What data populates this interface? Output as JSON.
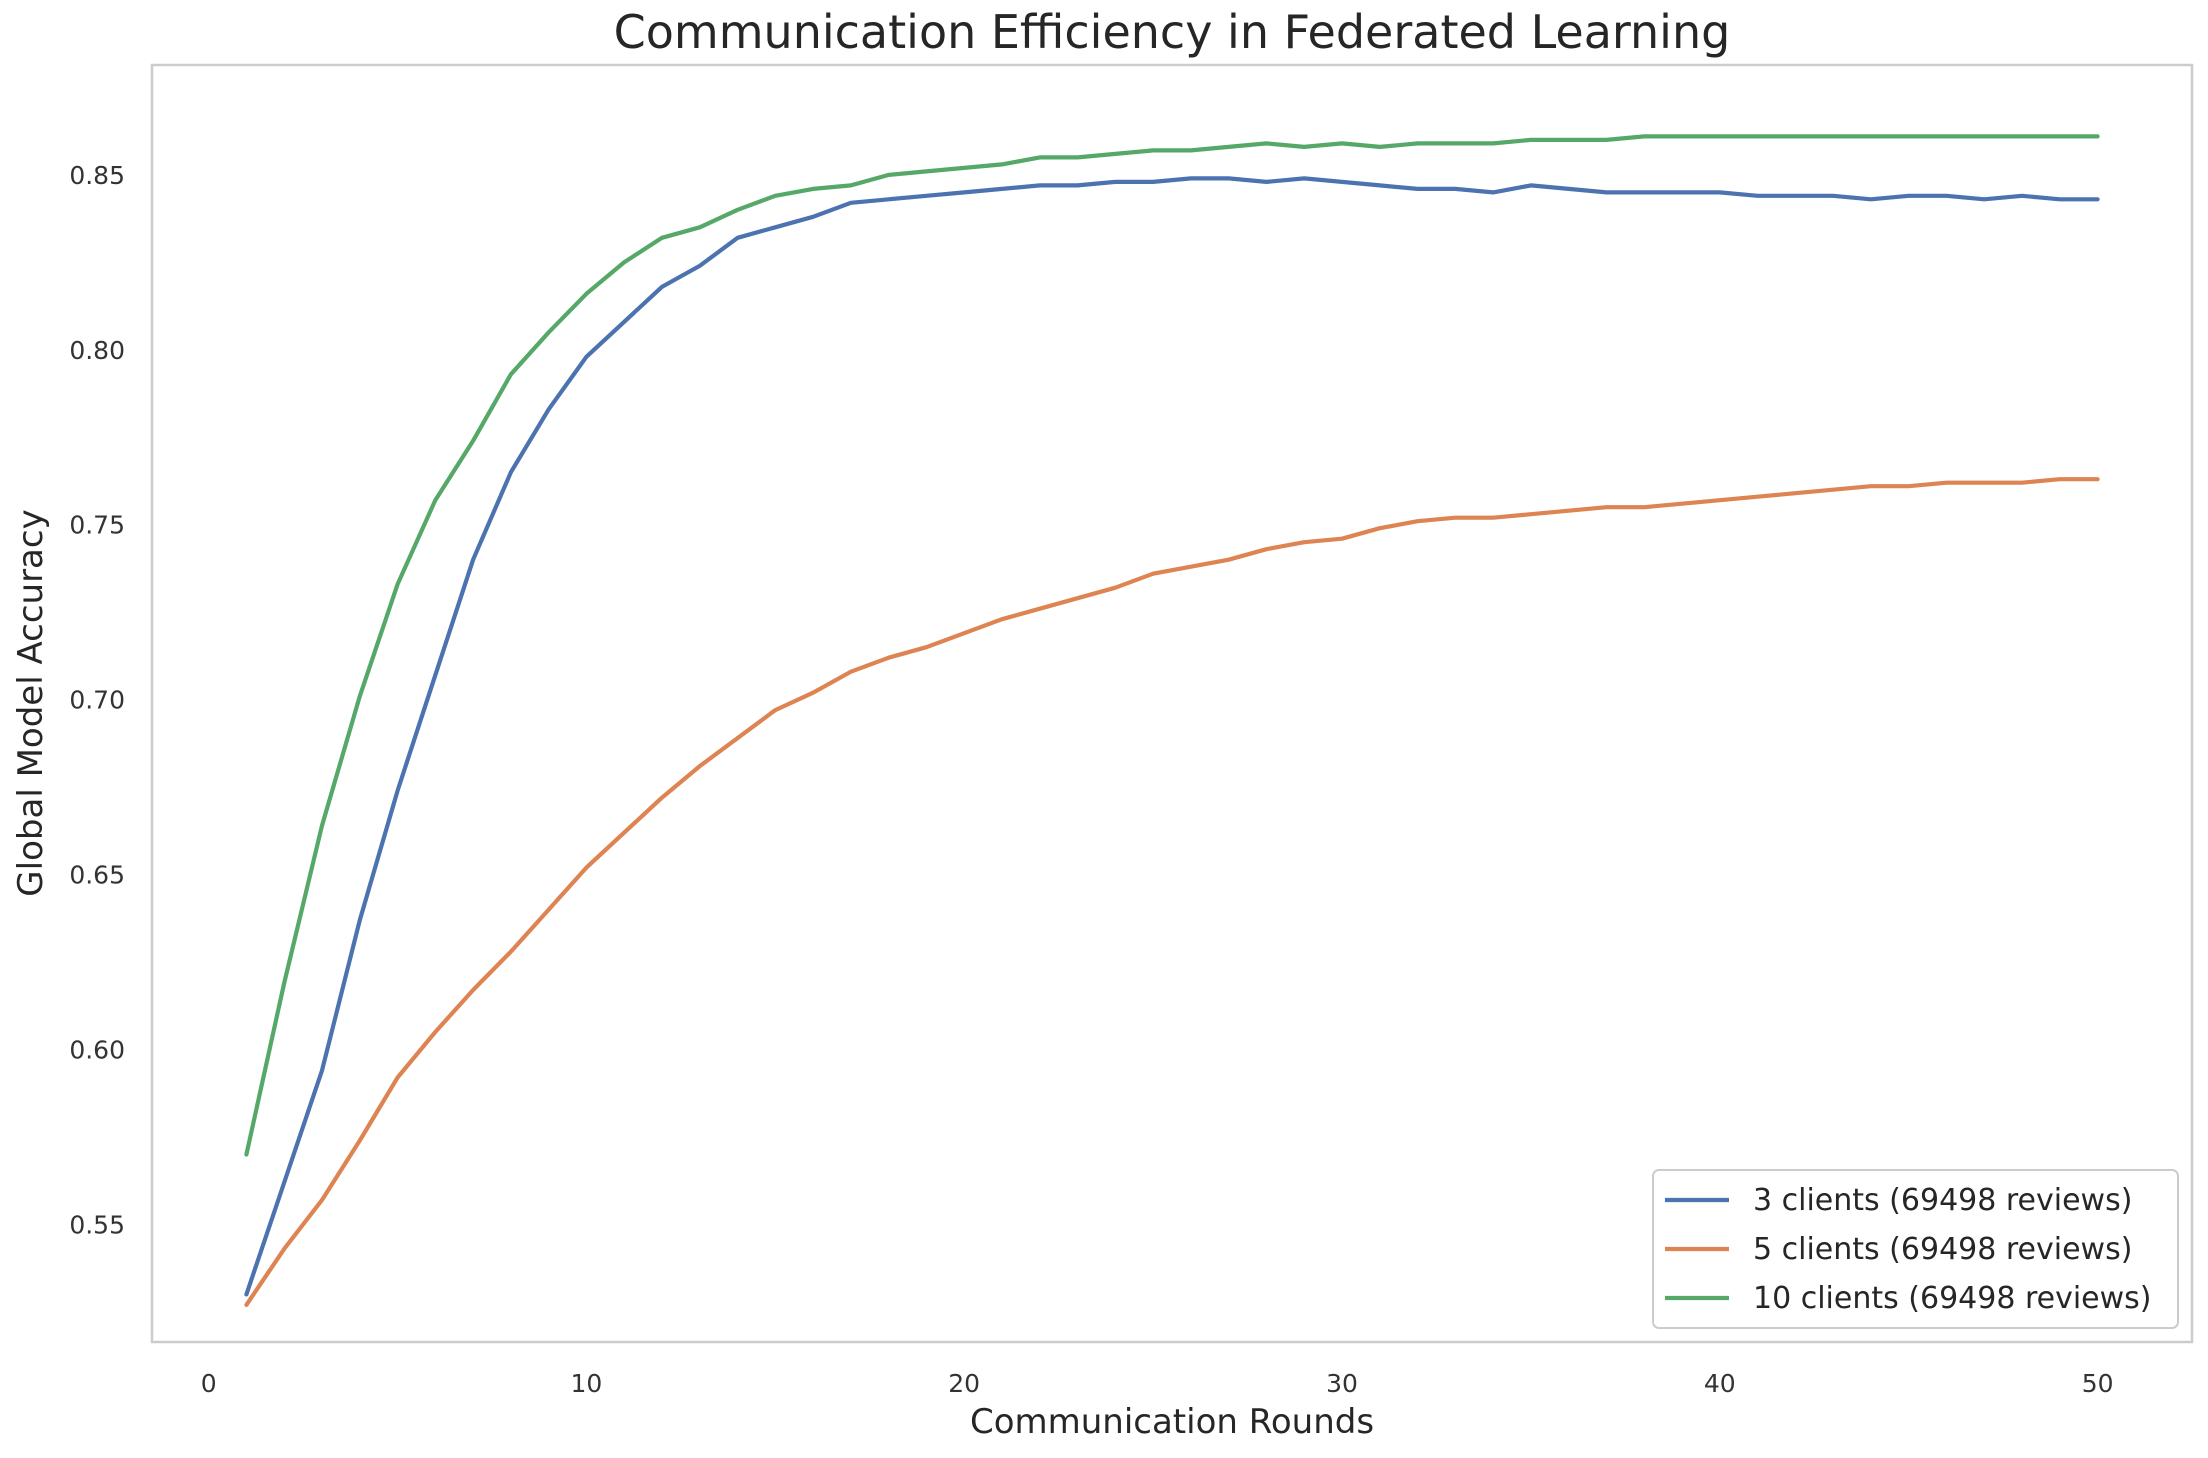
{
  "chart_data": {
    "type": "line",
    "title": "Communication Efficiency in Federated Learning",
    "xlabel": "Communication Rounds",
    "ylabel": "Global Model Accuracy",
    "xlim": [
      -1.5,
      52.5
    ],
    "ylim": [
      0.5164,
      0.8814
    ],
    "xticks": [
      0,
      10,
      20,
      30,
      40,
      50
    ],
    "yticks": [
      0.55,
      0.6,
      0.65,
      0.7,
      0.75,
      0.8,
      0.85
    ],
    "grid": false,
    "legend_position": "lower-right",
    "x": [
      1,
      2,
      3,
      4,
      5,
      6,
      7,
      8,
      9,
      10,
      11,
      12,
      13,
      14,
      15,
      16,
      17,
      18,
      19,
      20,
      21,
      22,
      23,
      24,
      25,
      26,
      27,
      28,
      29,
      30,
      31,
      32,
      33,
      34,
      35,
      36,
      37,
      38,
      39,
      40,
      41,
      42,
      43,
      44,
      45,
      46,
      47,
      48,
      49,
      50
    ],
    "series": [
      {
        "name": "3 clients (69498 reviews)",
        "color": "#4c72b0",
        "values": [
          0.53,
          0.562,
          0.594,
          0.637,
          0.674,
          0.707,
          0.74,
          0.765,
          0.783,
          0.798,
          0.808,
          0.818,
          0.824,
          0.832,
          0.835,
          0.838,
          0.842,
          0.843,
          0.844,
          0.845,
          0.846,
          0.847,
          0.847,
          0.848,
          0.848,
          0.849,
          0.849,
          0.848,
          0.849,
          0.848,
          0.847,
          0.846,
          0.846,
          0.845,
          0.847,
          0.846,
          0.845,
          0.845,
          0.845,
          0.845,
          0.844,
          0.844,
          0.844,
          0.843,
          0.844,
          0.844,
          0.843,
          0.844,
          0.843,
          0.843
        ]
      },
      {
        "name": "5 clients (69498 reviews)",
        "color": "#dd8452",
        "values": [
          0.527,
          0.543,
          0.557,
          0.574,
          0.592,
          0.605,
          0.617,
          0.628,
          0.64,
          0.652,
          0.662,
          0.672,
          0.681,
          0.689,
          0.697,
          0.702,
          0.708,
          0.712,
          0.715,
          0.719,
          0.723,
          0.726,
          0.729,
          0.732,
          0.736,
          0.738,
          0.74,
          0.743,
          0.745,
          0.746,
          0.749,
          0.751,
          0.752,
          0.752,
          0.753,
          0.754,
          0.755,
          0.755,
          0.756,
          0.757,
          0.758,
          0.759,
          0.76,
          0.761,
          0.761,
          0.762,
          0.762,
          0.762,
          0.763,
          0.763
        ]
      },
      {
        "name": "10 clients (69498 reviews)",
        "color": "#55a868",
        "values": [
          0.57,
          0.619,
          0.664,
          0.701,
          0.733,
          0.757,
          0.774,
          0.793,
          0.805,
          0.816,
          0.825,
          0.832,
          0.835,
          0.84,
          0.844,
          0.846,
          0.847,
          0.85,
          0.851,
          0.852,
          0.853,
          0.855,
          0.855,
          0.856,
          0.857,
          0.857,
          0.858,
          0.859,
          0.858,
          0.859,
          0.858,
          0.859,
          0.859,
          0.859,
          0.86,
          0.86,
          0.86,
          0.861,
          0.861,
          0.861,
          0.861,
          0.861,
          0.861,
          0.861,
          0.861,
          0.861,
          0.861,
          0.861,
          0.861,
          0.861
        ]
      }
    ]
  }
}
